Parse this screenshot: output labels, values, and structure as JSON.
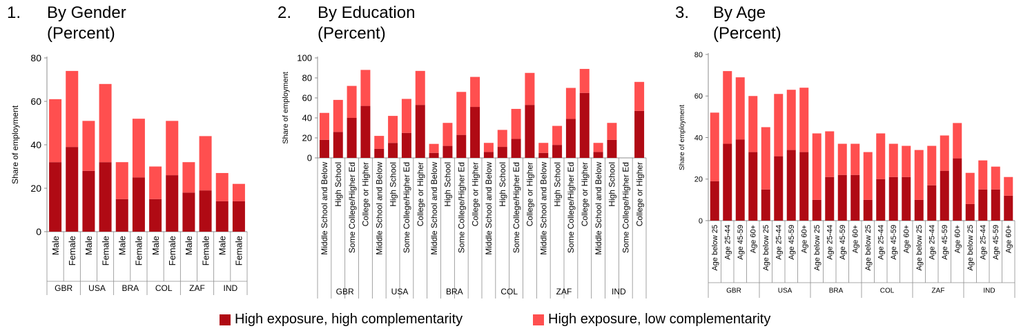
{
  "colors": {
    "high_comp": "#b00a14",
    "low_comp": "#ff4f4f",
    "axis": "#8c8c8c"
  },
  "panels": [
    {
      "number": "1.",
      "title_line1": "By Gender",
      "title_line2": "(Percent)"
    },
    {
      "number": "2.",
      "title_line1": "By Education",
      "title_line2": "(Percent)"
    },
    {
      "number": "3.",
      "title_line1": "By Age",
      "title_line2": "(Percent)"
    }
  ],
  "legend": [
    {
      "label": "High exposure, high complementarity",
      "color": "#b00a14"
    },
    {
      "label": "High exposure, low complementarity",
      "color": "#ff4f4f"
    }
  ],
  "chart_data": [
    {
      "type": "bar",
      "stacked": true,
      "title": "By Gender (Percent)",
      "ylabel": "Share of employment",
      "ylim": [
        0,
        80
      ],
      "yticks": [
        0,
        20,
        40,
        60,
        80
      ],
      "groups": [
        "GBR",
        "USA",
        "BRA",
        "COL",
        "ZAF",
        "IND"
      ],
      "subcategories": [
        "Male",
        "Female"
      ],
      "series": [
        {
          "name": "High exposure, high complementarity",
          "values": [
            [
              32,
              39
            ],
            [
              28,
              32
            ],
            [
              15,
              25
            ],
            [
              15,
              26
            ],
            [
              18,
              19
            ],
            [
              14,
              14
            ]
          ]
        },
        {
          "name": "High exposure, low complementarity",
          "values": [
            [
              29,
              35
            ],
            [
              23,
              36
            ],
            [
              17,
              27
            ],
            [
              15,
              25
            ],
            [
              14,
              25
            ],
            [
              13,
              8
            ]
          ]
        }
      ]
    },
    {
      "type": "bar",
      "stacked": true,
      "title": "By Education (Percent)",
      "ylabel": "Share of employment",
      "ylim": [
        0,
        100
      ],
      "yticks": [
        0,
        20,
        40,
        60,
        80,
        100
      ],
      "groups": [
        "GBR",
        "USA",
        "BRA",
        "COL",
        "ZAF",
        "IND"
      ],
      "subcategories": [
        "Middle School and Below",
        "High School",
        "Some College/Higher Ed",
        "College or Higher"
      ],
      "series": [
        {
          "name": "High exposure, high complementarity",
          "values": [
            [
              18,
              26,
              40,
              52
            ],
            [
              9,
              15,
              25,
              53
            ],
            [
              5,
              12,
              23,
              51
            ],
            [
              6,
              11,
              19,
              53
            ],
            [
              5,
              13,
              39,
              65
            ],
            [
              6,
              18,
              0,
              47
            ]
          ]
        },
        {
          "name": "High exposure, low complementarity",
          "values": [
            [
              27,
              32,
              32,
              36
            ],
            [
              13,
              27,
              34,
              34
            ],
            [
              9,
              23,
              43,
              30
            ],
            [
              9,
              17,
              30,
              32
            ],
            [
              10,
              19,
              31,
              24
            ],
            [
              9,
              17,
              0,
              29
            ]
          ]
        }
      ]
    },
    {
      "type": "bar",
      "stacked": true,
      "title": "By Age (Percent)",
      "ylabel": "Share of employment",
      "ylim": [
        0,
        80
      ],
      "yticks": [
        0,
        20,
        40,
        60,
        80
      ],
      "groups": [
        "GBR",
        "USA",
        "BRA",
        "COL",
        "ZAF",
        "IND"
      ],
      "subcategories": [
        "Age below 25",
        "Age 25-44",
        "Age 45-59",
        "Age 60+"
      ],
      "series": [
        {
          "name": "High exposure, high complementarity",
          "values": [
            [
              19,
              37,
              39,
              33
            ],
            [
              15,
              31,
              34,
              33
            ],
            [
              10,
              21,
              22,
              22
            ],
            [
              10,
              20,
              21,
              21
            ],
            [
              10,
              17,
              24,
              30
            ],
            [
              8,
              15,
              15,
              12
            ]
          ]
        },
        {
          "name": "High exposure, low complementarity",
          "values": [
            [
              33,
              35,
              30,
              27
            ],
            [
              30,
              30,
              29,
              31
            ],
            [
              32,
              22,
              15,
              15
            ],
            [
              23,
              22,
              16,
              15
            ],
            [
              24,
              19,
              17,
              17
            ],
            [
              15,
              14,
              11,
              9
            ]
          ]
        }
      ]
    }
  ]
}
